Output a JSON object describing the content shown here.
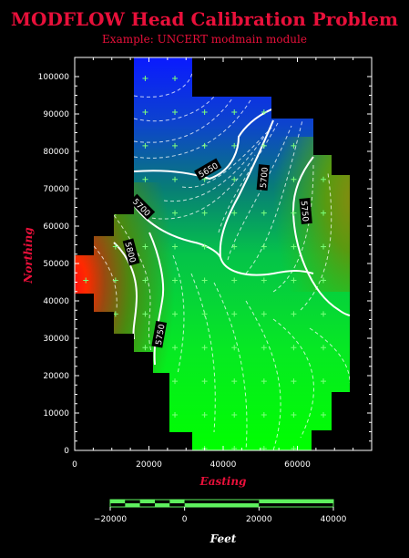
{
  "title": "MODFLOW Head Calibration Problem",
  "subtitle": "Example: UNCERT modmain module",
  "chart_data": {
    "type": "contour",
    "xlabel": "Easting",
    "ylabel": "Northing",
    "xlim": [
      0,
      80000
    ],
    "ylim": [
      0,
      105000
    ],
    "x_ticks": [
      0,
      20000,
      40000,
      60000
    ],
    "y_ticks": [
      0,
      10000,
      20000,
      30000,
      40000,
      50000,
      60000,
      70000,
      80000,
      90000,
      100000
    ],
    "contour_labels": [
      {
        "text": "5650",
        "x": 36000,
        "y": 75000
      },
      {
        "text": "5700",
        "x": 51000,
        "y": 73000
      },
      {
        "text": "5750",
        "x": 62000,
        "y": 64000
      },
      {
        "text": "5700",
        "x": 18000,
        "y": 65000
      },
      {
        "text": "5800",
        "x": 15000,
        "y": 53000
      },
      {
        "text": "5750",
        "x": 23000,
        "y": 31000
      }
    ],
    "grid_marker": "+",
    "colormap": [
      "#0000ff",
      "#008855",
      "#00ff00",
      "#7a7a10",
      "#ff0000"
    ]
  },
  "scalebar": {
    "label": "Feet",
    "ticks": [
      "−20000",
      "0",
      "20000",
      "40000"
    ],
    "color_a": "#5ef05e",
    "color_b": "#000000"
  }
}
